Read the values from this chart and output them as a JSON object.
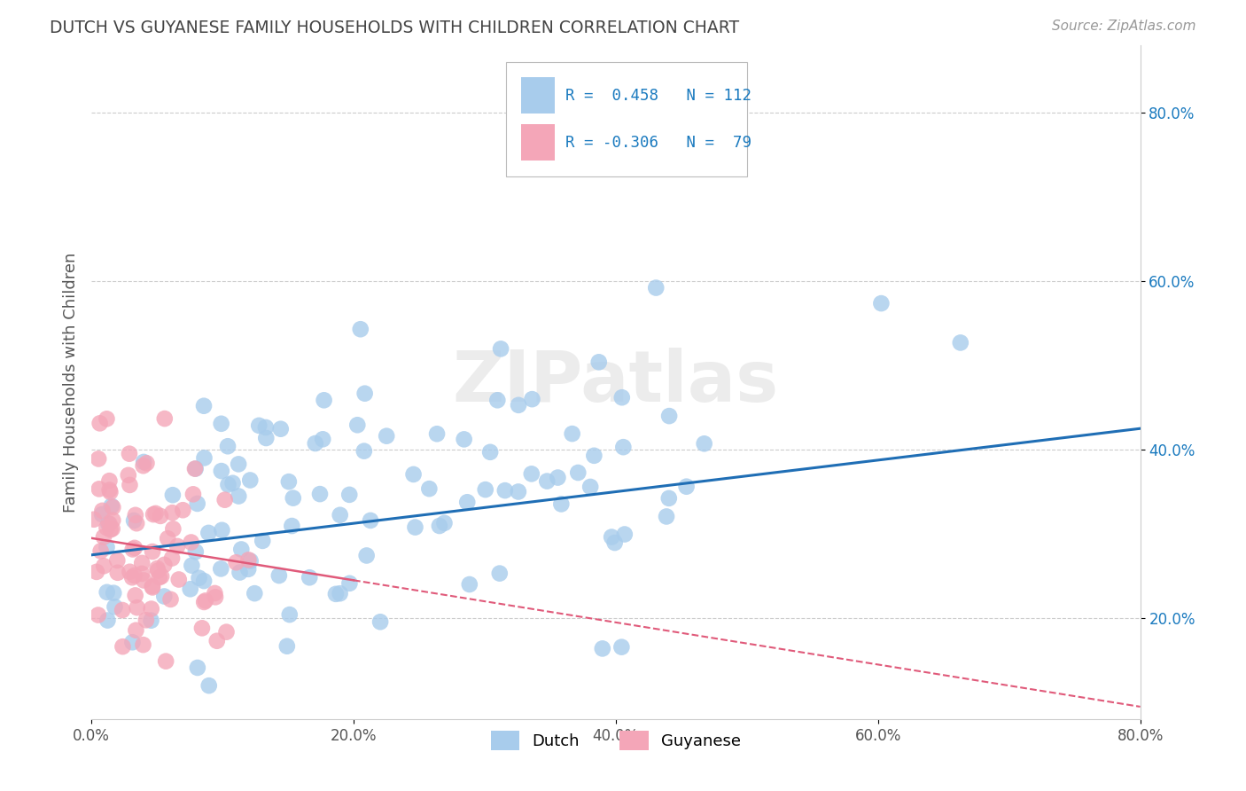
{
  "title": "DUTCH VS GUYANESE FAMILY HOUSEHOLDS WITH CHILDREN CORRELATION CHART",
  "source": "Source: ZipAtlas.com",
  "ylabel": "Family Households with Children",
  "watermark": "ZIPatlas",
  "xlim": [
    0.0,
    0.8
  ],
  "ylim": [
    0.08,
    0.88
  ],
  "xtick_labels": [
    "0.0%",
    "20.0%",
    "40.0%",
    "60.0%",
    "80.0%"
  ],
  "xtick_vals": [
    0.0,
    0.2,
    0.4,
    0.6,
    0.8
  ],
  "ytick_labels": [
    "20.0%",
    "40.0%",
    "60.0%",
    "80.0%"
  ],
  "ytick_vals": [
    0.2,
    0.4,
    0.6,
    0.8
  ],
  "dutch_color": "#a8ccec",
  "guyanese_color": "#f4a6b8",
  "dutch_R": 0.458,
  "dutch_N": 112,
  "guyanese_R": -0.306,
  "guyanese_N": 79,
  "dutch_line_color": "#1f6eb5",
  "guyanese_line_color": "#e05a7a",
  "background_color": "#ffffff",
  "grid_color": "#cccccc",
  "title_color": "#444444",
  "legend_text_color": "#1a7abf",
  "axis_label_color": "#1a7abf",
  "dutch_line_y0": 0.275,
  "dutch_line_y1": 0.425,
  "guyanese_line_y0": 0.295,
  "guyanese_line_y1": 0.095
}
